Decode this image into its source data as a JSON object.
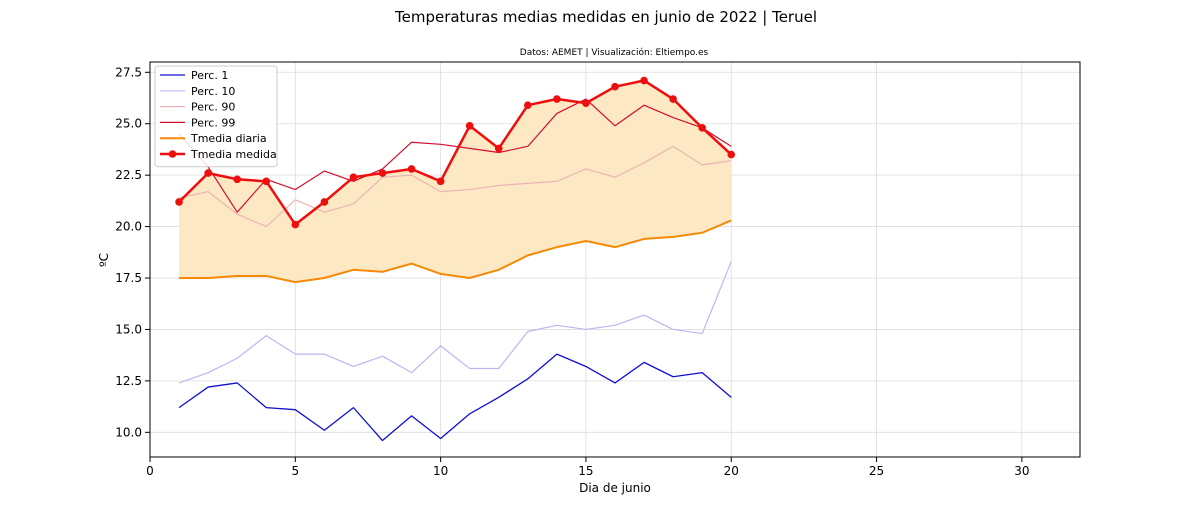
{
  "chart_data": {
    "type": "line",
    "title": "Temperaturas medias medidas en junio de 2022 | Teruel",
    "subtitle": "Datos: AEMET | Visualización: Eltiempo.es",
    "xlabel": "Dia de junio",
    "ylabel": "ºC",
    "xlim": [
      0,
      32
    ],
    "ylim": [
      8.8,
      28.0
    ],
    "xticks": [
      0,
      5,
      10,
      15,
      20,
      25,
      30
    ],
    "yticks": [
      10.0,
      12.5,
      15.0,
      17.5,
      20.0,
      22.5,
      25.0,
      27.5
    ],
    "xtick_labels": [
      "0",
      "5",
      "10",
      "15",
      "20",
      "25",
      "30"
    ],
    "ytick_labels": [
      "10.0",
      "12.5",
      "15.0",
      "17.5",
      "20.0",
      "22.5",
      "25.0",
      "27.5"
    ],
    "grid": true,
    "legend_position": "top-left",
    "fill_between": {
      "between": [
        "Tmedia diaria",
        "Tmedia medida"
      ],
      "color": "#fde8c4"
    },
    "x": [
      1,
      2,
      3,
      4,
      5,
      6,
      7,
      8,
      9,
      10,
      11,
      12,
      13,
      14,
      15,
      16,
      17,
      18,
      19,
      20
    ],
    "series": [
      {
        "name": "Perc. 1",
        "color": "#1010d0",
        "width": 1.3,
        "markers": false,
        "values": [
          11.2,
          12.2,
          12.4,
          11.2,
          11.1,
          10.1,
          11.2,
          9.6,
          10.8,
          9.7,
          10.9,
          11.7,
          12.6,
          13.8,
          13.2,
          12.4,
          13.4,
          12.7,
          12.9,
          11.7
        ]
      },
      {
        "name": "Perc. 10",
        "color": "#b8b8f0",
        "width": 1.2,
        "markers": false,
        "values": [
          12.4,
          12.9,
          13.6,
          14.7,
          13.8,
          13.8,
          13.2,
          13.7,
          12.9,
          14.2,
          13.1,
          13.1,
          14.9,
          15.2,
          15.0,
          15.2,
          15.7,
          15.0,
          14.8,
          18.3
        ]
      },
      {
        "name": "Perc. 90",
        "color": "#ebb4b4",
        "width": 1.2,
        "markers": false,
        "values": [
          21.4,
          21.7,
          20.6,
          20.0,
          21.3,
          20.7,
          21.1,
          22.4,
          22.5,
          21.7,
          21.8,
          22.0,
          22.1,
          22.2,
          22.8,
          22.4,
          23.1,
          23.9,
          23.0,
          23.2
        ]
      },
      {
        "name": "Perc. 99",
        "color": "#d01030",
        "width": 1.2,
        "markers": false,
        "values": [
          24.5,
          22.9,
          20.7,
          22.3,
          21.8,
          22.7,
          22.2,
          22.8,
          24.1,
          24.0,
          23.8,
          23.6,
          23.9,
          25.5,
          26.2,
          24.9,
          25.9,
          25.3,
          24.8,
          23.9
        ]
      },
      {
        "name": "Tmedia diaria",
        "color": "#f58a07",
        "width": 2.0,
        "markers": false,
        "values": [
          17.5,
          17.5,
          17.6,
          17.6,
          17.3,
          17.5,
          17.9,
          17.8,
          18.2,
          17.7,
          17.5,
          17.9,
          18.6,
          19.0,
          19.3,
          19.0,
          19.4,
          19.5,
          19.7,
          20.3
        ]
      },
      {
        "name": "Tmedia medida",
        "color": "#ee0e0e",
        "width": 2.5,
        "markers": true,
        "values": [
          21.2,
          22.6,
          22.3,
          22.2,
          20.1,
          21.2,
          22.4,
          22.6,
          22.8,
          22.2,
          24.9,
          23.8,
          25.9,
          26.2,
          26.0,
          26.8,
          27.1,
          26.2,
          24.8,
          23.5
        ]
      }
    ]
  }
}
